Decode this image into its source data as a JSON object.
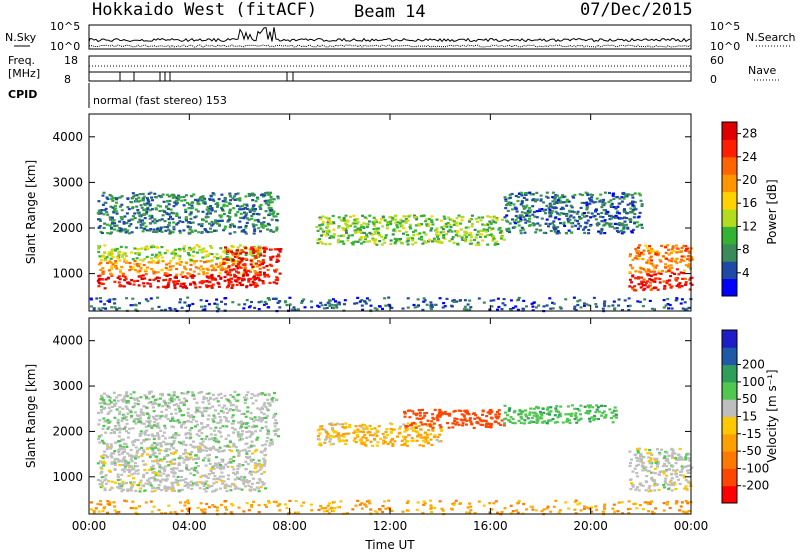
{
  "header": {
    "radar": "Hokkaido West (fitACF)",
    "beam": "Beam 14",
    "date": "07/Dec/2015"
  },
  "noise_panel": {
    "left_label": "N.Sky",
    "right_label": "N.Search",
    "left_ticks": [
      "10^5",
      "10^0"
    ],
    "right_ticks": [
      "10^5",
      "10^0"
    ]
  },
  "freq_panel": {
    "left_label_1": "Freq.",
    "left_label_2": "[MHz]",
    "left_ticks": [
      "18",
      "8"
    ],
    "right_label": "Nave",
    "right_ticks": [
      "60",
      "0"
    ]
  },
  "cpid": {
    "label": "CPID",
    "text": "normal (fast stereo) 153"
  },
  "chart_data": [
    {
      "type": "heatmap",
      "name": "power",
      "ylabel": "Slant Range [km]",
      "yticks": [
        "1000",
        "2000",
        "3000",
        "4000"
      ],
      "ylim": [
        180,
        4500
      ],
      "xticks": [
        "00:00",
        "04:00",
        "08:00",
        "12:00",
        "16:00",
        "20:00",
        "00:00"
      ],
      "xlim": [
        0,
        24
      ],
      "colorbar": {
        "label": "Power [dB]",
        "ticks": [
          "4",
          "8",
          "12",
          "16",
          "20",
          "24",
          "28"
        ],
        "range": [
          0,
          30
        ],
        "colors": [
          "#0000ff",
          "#1e4aa6",
          "#3a8a5a",
          "#34b234",
          "#b4dc1e",
          "#ffd200",
          "#ff9600",
          "#ff6400",
          "#ff1e00",
          "#e00000"
        ]
      },
      "regions": [
        {
          "t": [
            0.3,
            6.8
          ],
          "r": [
            700,
            1000
          ],
          "value": 28
        },
        {
          "t": [
            0.3,
            6.8
          ],
          "r": [
            1000,
            1300
          ],
          "value": 20
        },
        {
          "t": [
            0.3,
            6.8
          ],
          "r": [
            1300,
            1650
          ],
          "value": 13
        },
        {
          "t": [
            0.3,
            7.5
          ],
          "r": [
            1900,
            2800
          ],
          "value": 7
        },
        {
          "t": [
            5.3,
            7.6
          ],
          "r": [
            800,
            1600
          ],
          "value": 27
        },
        {
          "t": [
            9.0,
            16.5
          ],
          "r": [
            1650,
            2300
          ],
          "value": 12
        },
        {
          "t": [
            16.5,
            22.0
          ],
          "r": [
            1900,
            2800
          ],
          "value": 6
        },
        {
          "t": [
            21.5,
            24.0
          ],
          "r": [
            650,
            1050
          ],
          "value": 27
        },
        {
          "t": [
            21.5,
            24.0
          ],
          "r": [
            1050,
            1650
          ],
          "value": 21
        },
        {
          "t": [
            0.0,
            24.0
          ],
          "r": [
            200,
            500
          ],
          "value": 5
        }
      ]
    },
    {
      "type": "heatmap",
      "name": "velocity",
      "xlabel": "Time UT",
      "ylabel": "Slant Range [km]",
      "yticks": [
        "1000",
        "2000",
        "3000",
        "4000"
      ],
      "ylim": [
        180,
        4500
      ],
      "xticks": [
        "00:00",
        "04:00",
        "08:00",
        "12:00",
        "16:00",
        "20:00",
        "00:00"
      ],
      "xlim": [
        0,
        24
      ],
      "colorbar": {
        "label": "Velocity [m s⁻¹]",
        "ticks": [
          "-200",
          "-100",
          "-50",
          "-15",
          "15",
          "50",
          "100",
          "200"
        ],
        "colors": [
          "#ff0000",
          "#ff4600",
          "#ff7800",
          "#ffa000",
          "#ffc800",
          "#bebebe",
          "#50c850",
          "#2e9e5a",
          "#1e5aa8",
          "#1e1ec8"
        ]
      },
      "regions": [
        {
          "t": [
            0.3,
            7.0
          ],
          "r": [
            700,
            1700
          ],
          "value": 0
        },
        {
          "t": [
            0.3,
            7.5
          ],
          "r": [
            1700,
            2900
          ],
          "value": 5
        },
        {
          "t": [
            9.0,
            14.0
          ],
          "r": [
            1700,
            2200
          ],
          "value": -30
        },
        {
          "t": [
            12.5,
            16.5
          ],
          "r": [
            2100,
            2500
          ],
          "value": -150
        },
        {
          "t": [
            16.5,
            21.0
          ],
          "r": [
            2200,
            2600
          ],
          "value": 40
        },
        {
          "t": [
            21.5,
            24.0
          ],
          "r": [
            700,
            1650
          ],
          "value": 0
        },
        {
          "t": [
            0.0,
            24.0
          ],
          "r": [
            200,
            500
          ],
          "value": -40
        }
      ]
    }
  ]
}
